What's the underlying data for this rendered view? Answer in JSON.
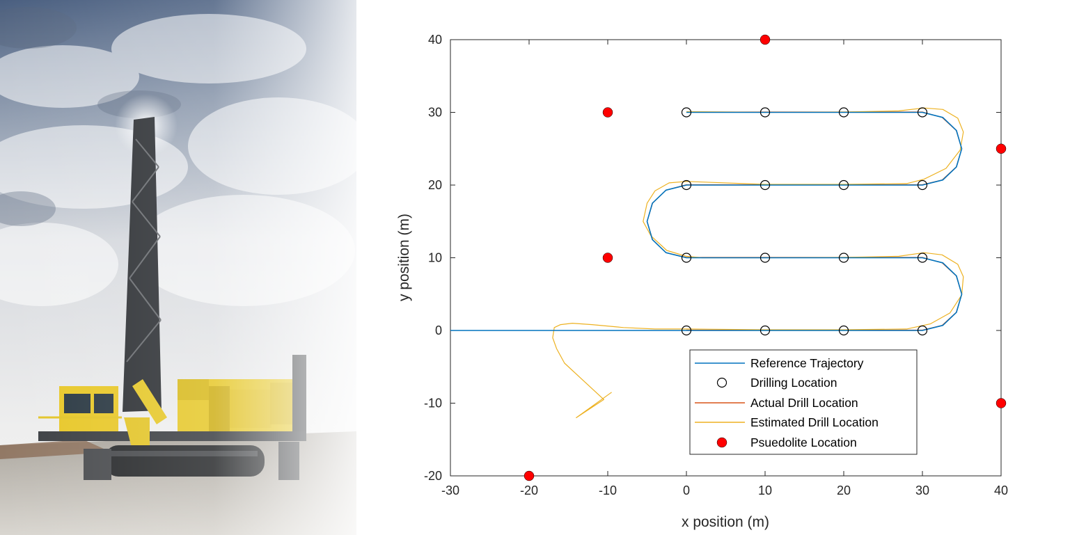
{
  "chart_data": {
    "type": "line",
    "title": "",
    "xlabel": "x position (m)",
    "ylabel": "y position (m)",
    "xlim": [
      -30,
      40
    ],
    "ylim": [
      -20,
      40
    ],
    "xticks": [
      -30,
      -20,
      -10,
      0,
      10,
      20,
      30,
      40
    ],
    "yticks": [
      -20,
      -10,
      0,
      10,
      20,
      30,
      40
    ],
    "grid": false,
    "legend_position": "bottom-center",
    "legend": [
      "Reference Trajectory",
      "Drilling Location",
      "Actual Drill Location",
      "Estimated Drill Location",
      "Psuedolite Location"
    ],
    "colors": {
      "reference": "#0072BD",
      "actual": "#D95319",
      "estimated": "#EDB120",
      "pseudolite": "#FF0000",
      "drilling": "#000000"
    },
    "series": [
      {
        "name": "Reference Trajectory",
        "x": [
          -30,
          30,
          32.59,
          34.33,
          35,
          34.33,
          32.59,
          30,
          0,
          -2.59,
          -4.33,
          -5,
          -4.33,
          -2.59,
          0,
          30,
          32.59,
          34.33,
          35,
          34.33,
          32.59,
          30,
          0
        ],
        "y": [
          0,
          0,
          0.7,
          2.5,
          5,
          7.5,
          9.3,
          10,
          10,
          10.7,
          12.5,
          15,
          17.5,
          19.3,
          20,
          20,
          20.7,
          22.5,
          25,
          27.5,
          29.3,
          30,
          30
        ]
      },
      {
        "name": "Actual Drill Location",
        "x": [
          0,
          30,
          32.5,
          34.3,
          35,
          34.3,
          32.5,
          30,
          0,
          -2.6,
          -4.3,
          -5,
          -4.3,
          -2.6,
          0,
          30,
          32.5,
          34.3,
          35,
          34.3,
          32.5,
          30,
          0
        ],
        "y": [
          0.05,
          0.05,
          0.7,
          2.5,
          5,
          7.5,
          9.3,
          10.05,
          10.05,
          10.7,
          12.5,
          15,
          17.5,
          19.3,
          20.05,
          20.05,
          20.7,
          22.5,
          25,
          27.5,
          29.3,
          30.05,
          30.05
        ]
      },
      {
        "name": "Estimated Drill Location",
        "x": [
          -9.5,
          -14,
          -10.5,
          -13.5,
          -15.5,
          -16.5,
          -17,
          -16.8,
          -16,
          -14.5,
          -12,
          -8,
          -4,
          0,
          10,
          20,
          28,
          31,
          33.5,
          35,
          35.2,
          34.5,
          32.5,
          30.2,
          27,
          20,
          10,
          2,
          0,
          -2.5,
          -4.5,
          -5.5,
          -5,
          -4,
          -2.2,
          0,
          10,
          20,
          28,
          30.2,
          33,
          34.8,
          35.2,
          34.5,
          32.6,
          30.2,
          27,
          20,
          10,
          0
        ],
        "y": [
          -8.5,
          -12,
          -9.5,
          -6.5,
          -4.5,
          -2.5,
          -1,
          0.4,
          0.8,
          1,
          0.8,
          0.4,
          0.2,
          0.2,
          0.1,
          0.1,
          0.2,
          0.9,
          2.4,
          4.9,
          7.4,
          9.1,
          10.4,
          10.7,
          10.2,
          10.05,
          10,
          10,
          10.2,
          11,
          13,
          15,
          17.5,
          19.2,
          20.3,
          20.5,
          20.1,
          20.1,
          20.2,
          20.8,
          22.3,
          24.8,
          27.3,
          29.2,
          30.4,
          30.6,
          30.2,
          30.05,
          30,
          30.1
        ]
      }
    ],
    "drilling_locations": {
      "x": [
        0,
        10,
        20,
        30,
        0,
        10,
        20,
        30,
        0,
        10,
        20,
        30,
        0,
        10,
        20,
        30
      ],
      "y": [
        0,
        0,
        0,
        0,
        10,
        10,
        10,
        10,
        20,
        20,
        20,
        20,
        30,
        30,
        30,
        30
      ]
    },
    "pseudolite_locations": {
      "x": [
        10,
        -10,
        40,
        -10,
        40,
        -20
      ],
      "y": [
        40,
        30,
        25,
        10,
        -10,
        -20
      ]
    }
  }
}
